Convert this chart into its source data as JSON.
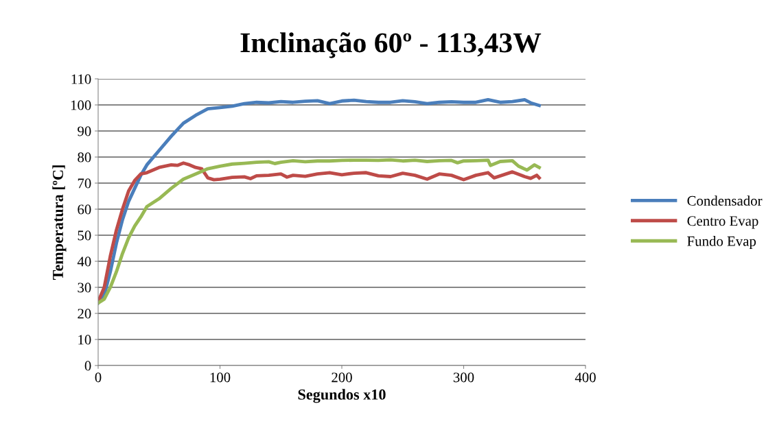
{
  "chart_data": {
    "type": "line",
    "title": "Inclinação 60º - 113,43W",
    "xlabel": "Segundos x10",
    "ylabel": "Temperatura [ºC]",
    "xlim": [
      0,
      400
    ],
    "xticks": [
      0,
      100,
      200,
      300,
      400
    ],
    "ylim": [
      0,
      110
    ],
    "yticks": [
      0,
      10,
      20,
      30,
      40,
      50,
      60,
      70,
      80,
      90,
      100,
      110
    ],
    "grid": "y",
    "legend": "right",
    "marker": "none",
    "line_style": "solid",
    "series": [
      {
        "name": "Condensador",
        "color": "#4a7ebb",
        "x": [
          0,
          5,
          10,
          15,
          20,
          25,
          30,
          35,
          40,
          50,
          60,
          70,
          80,
          90,
          100,
          110,
          120,
          130,
          140,
          150,
          160,
          170,
          180,
          190,
          200,
          210,
          220,
          230,
          240,
          250,
          260,
          270,
          280,
          290,
          300,
          310,
          320,
          330,
          340,
          350,
          355,
          362
        ],
        "values": [
          24,
          27,
          36,
          47,
          56,
          63,
          68,
          73,
          77,
          82.5,
          88,
          93,
          96,
          98.5,
          99,
          99.5,
          100.5,
          101,
          100.8,
          101.3,
          101,
          101.4,
          101.6,
          100.5,
          101.5,
          101.8,
          101.3,
          101,
          101,
          101.6,
          101.2,
          100.5,
          101,
          101.2,
          101,
          101,
          102,
          101,
          101.3,
          102,
          100.8,
          99.8
        ]
      },
      {
        "name": "Centro Evap",
        "color": "#be4b48",
        "x": [
          0,
          5,
          10,
          15,
          20,
          25,
          30,
          35,
          40,
          50,
          60,
          65,
          70,
          75,
          80,
          85,
          90,
          95,
          100,
          110,
          120,
          125,
          130,
          140,
          150,
          155,
          160,
          170,
          180,
          190,
          200,
          210,
          220,
          230,
          240,
          250,
          260,
          270,
          280,
          290,
          300,
          310,
          320,
          325,
          340,
          350,
          355,
          360,
          362
        ],
        "values": [
          24.5,
          30,
          42,
          52,
          60,
          67,
          71,
          73.5,
          74,
          76,
          77,
          76.8,
          77.7,
          77,
          76,
          75.5,
          72,
          71.3,
          71.5,
          72.2,
          72.4,
          71.7,
          72.8,
          73,
          73.5,
          72.3,
          73,
          72.6,
          73.5,
          74,
          73.2,
          73.8,
          74,
          72.8,
          72.5,
          73.8,
          73,
          71.5,
          73.5,
          73,
          71.3,
          73,
          74,
          72,
          74.3,
          72.5,
          71.8,
          73,
          72
        ]
      },
      {
        "name": "Fundo Evap",
        "color": "#98b954",
        "x": [
          0,
          5,
          10,
          15,
          20,
          25,
          30,
          35,
          40,
          50,
          60,
          70,
          80,
          90,
          100,
          110,
          120,
          130,
          140,
          145,
          150,
          160,
          170,
          180,
          190,
          200,
          210,
          220,
          230,
          240,
          250,
          260,
          270,
          280,
          290,
          295,
          300,
          310,
          320,
          322,
          330,
          340,
          345,
          352,
          358,
          362
        ],
        "values": [
          24,
          25.5,
          30,
          36,
          43,
          49,
          53.5,
          57,
          61,
          64,
          68,
          71.5,
          73.5,
          75.5,
          76.5,
          77.3,
          77.6,
          78,
          78.2,
          77.5,
          78,
          78.6,
          78.2,
          78.5,
          78.5,
          78.7,
          78.8,
          78.8,
          78.7,
          78.9,
          78.5,
          78.8,
          78.3,
          78.6,
          78.7,
          77.8,
          78.5,
          78.6,
          78.8,
          76.8,
          78.3,
          78.6,
          76.5,
          75,
          77,
          76
        ]
      }
    ]
  }
}
